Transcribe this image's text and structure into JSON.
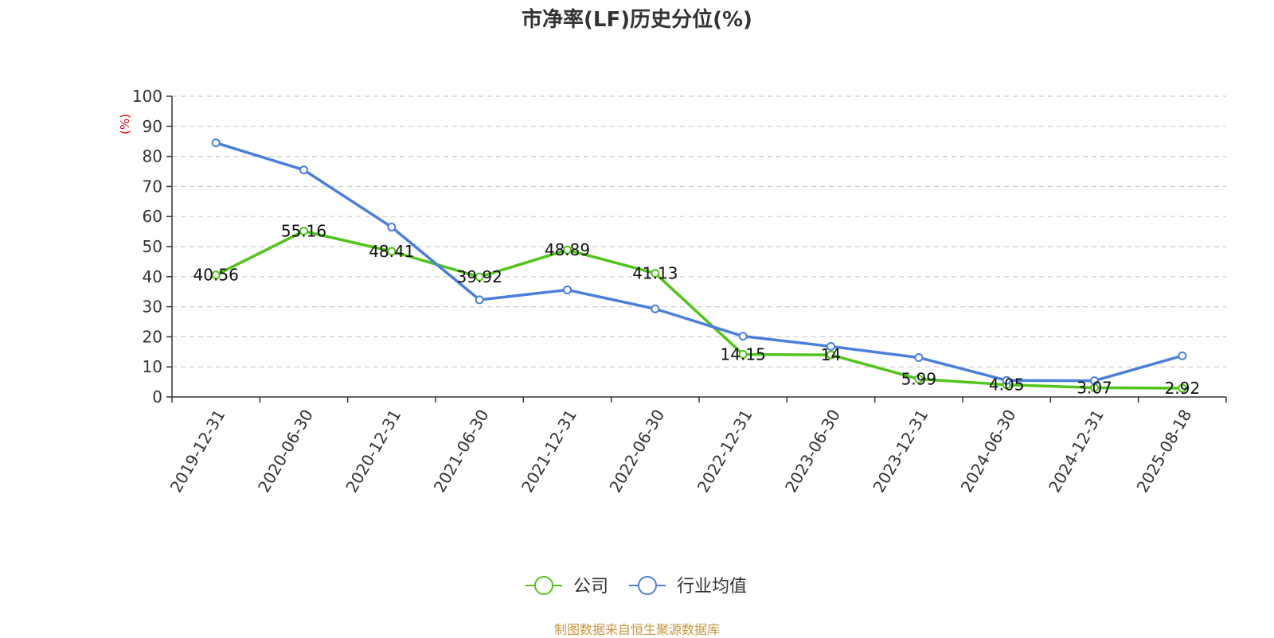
{
  "chart_data": {
    "type": "line",
    "title": "市净率(LF)历史分位(%)",
    "y_unit": "(%)",
    "categories": [
      "2019-12-31",
      "2020-06-30",
      "2020-12-31",
      "2021-06-30",
      "2021-12-31",
      "2022-06-30",
      "2022-12-31",
      "2023-06-30",
      "2023-12-31",
      "2024-06-30",
      "2024-12-31",
      "2025-08-18"
    ],
    "series": [
      {
        "name": "公司",
        "color": "#52c41a",
        "values": [
          40.56,
          55.16,
          48.41,
          39.92,
          48.89,
          41.13,
          14.15,
          14,
          5.99,
          4.05,
          3.07,
          2.92
        ],
        "labels": [
          "40.56",
          "55.16",
          "48.41",
          "39.92",
          "48.89",
          "41.13",
          "14.15",
          "14",
          "5.99",
          "4.05",
          "3.07",
          "2.92"
        ]
      },
      {
        "name": "行业均值",
        "color": "#4a7fdc",
        "values": [
          84.5,
          75.5,
          56.5,
          32.3,
          35.6,
          29.3,
          20.2,
          16.8,
          13.1,
          5.5,
          5.4,
          13.7
        ]
      }
    ],
    "ylim": [
      0,
      100
    ],
    "yticks": [
      0,
      10,
      20,
      30,
      40,
      50,
      60,
      70,
      80,
      90,
      100
    ],
    "grid": true,
    "legend_position": "bottom-center"
  },
  "source": "制图数据来自恒生聚源数据库"
}
